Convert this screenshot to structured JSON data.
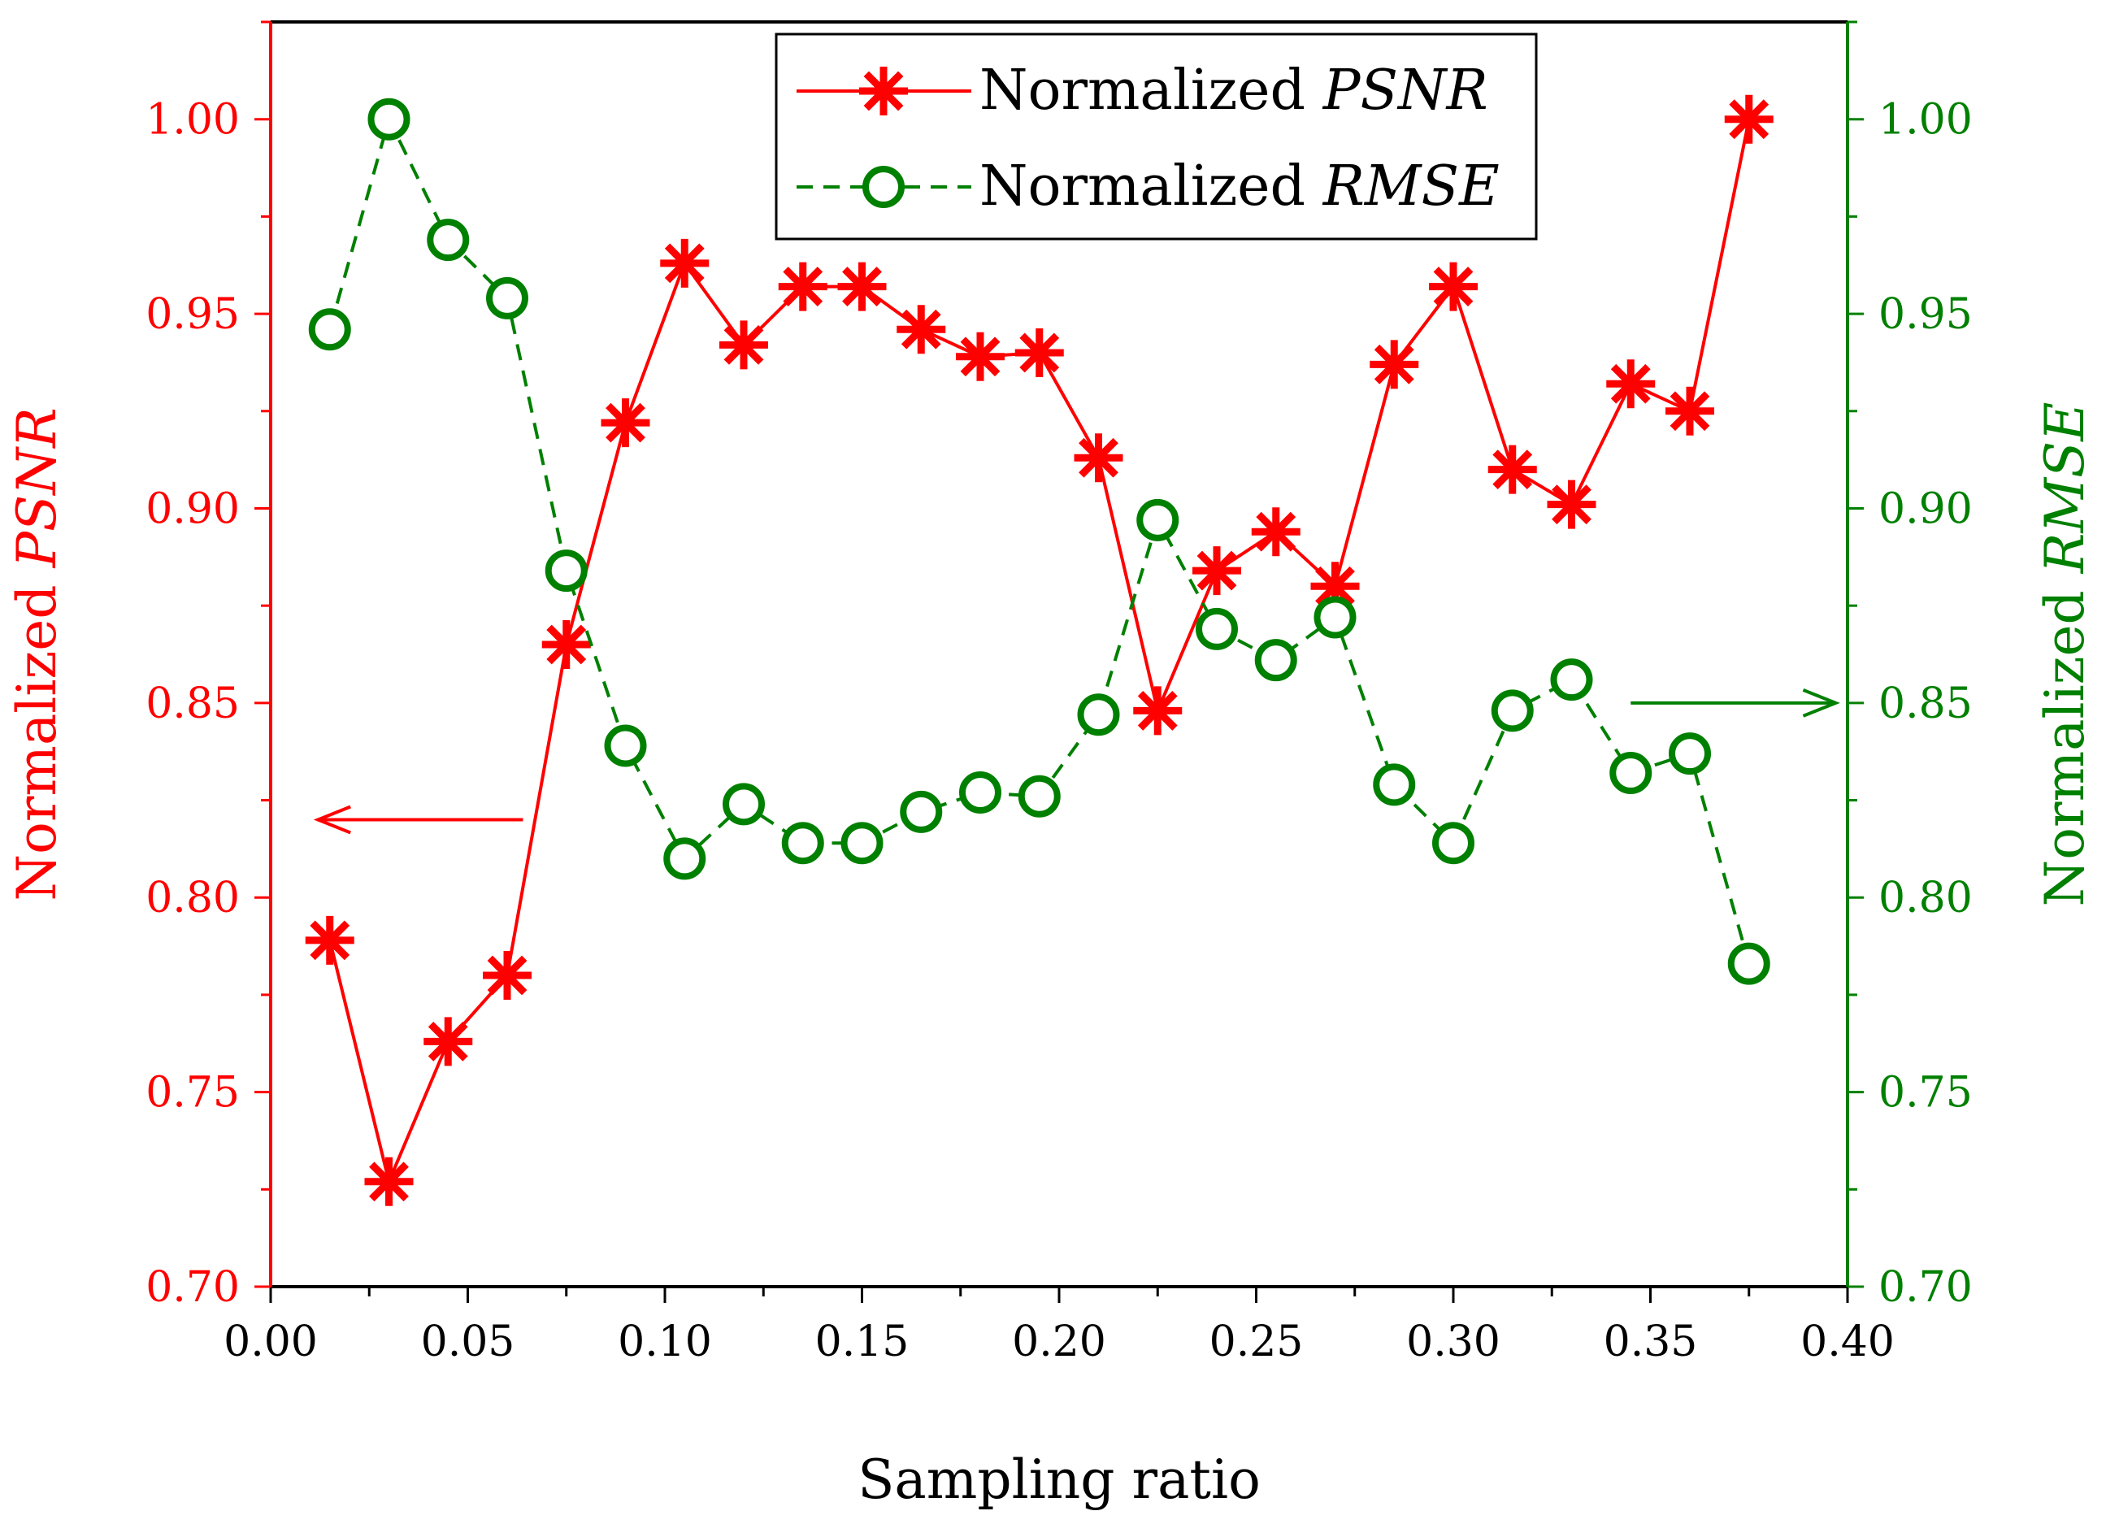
{
  "chart_data": {
    "type": "line",
    "x": [
      0.015,
      0.03,
      0.045,
      0.06,
      0.075,
      0.09,
      0.105,
      0.12,
      0.135,
      0.15,
      0.165,
      0.18,
      0.195,
      0.21,
      0.225,
      0.24,
      0.255,
      0.27,
      0.285,
      0.3,
      0.315,
      0.33,
      0.345,
      0.36,
      0.375
    ],
    "series": [
      {
        "name": "Normalized PSNR",
        "name_prefix": "Normalized ",
        "name_italic": "PSNR",
        "axis": "left",
        "color": "#ff0000",
        "marker": "asterisk",
        "line_style": "solid",
        "values": [
          0.789,
          0.727,
          0.763,
          0.78,
          0.865,
          0.922,
          0.963,
          0.942,
          0.957,
          0.957,
          0.946,
          0.939,
          0.94,
          0.913,
          0.848,
          0.884,
          0.894,
          0.88,
          0.937,
          0.957,
          0.91,
          0.901,
          0.932,
          0.925,
          1.0
        ]
      },
      {
        "name": "Normalized RMSE",
        "name_prefix": "Normalized ",
        "name_italic": "RMSE",
        "axis": "right",
        "color": "#008000",
        "marker": "circle",
        "line_style": "dashed",
        "values": [
          0.946,
          1.0,
          0.969,
          0.954,
          0.884,
          0.839,
          0.81,
          0.824,
          0.814,
          0.814,
          0.822,
          0.827,
          0.826,
          0.847,
          0.897,
          0.869,
          0.861,
          0.872,
          0.829,
          0.814,
          0.848,
          0.856,
          0.832,
          0.837,
          0.783
        ]
      }
    ],
    "xlabel": "Sampling ratio",
    "ylabel_left": {
      "prefix": "Normalized ",
      "italic": "PSNR"
    },
    "ylabel_right": {
      "prefix": "Normalized ",
      "italic": "RMSE"
    },
    "xlim": [
      0.0,
      0.4
    ],
    "ylim_left": [
      0.7,
      1.025
    ],
    "ylim_right": [
      0.7,
      1.025
    ],
    "x_ticks": [
      "0.00",
      "0.05",
      "0.10",
      "0.15",
      "0.20",
      "0.25",
      "0.30",
      "0.35",
      "0.40"
    ],
    "y_ticks_left": [
      "0.70",
      "0.75",
      "0.80",
      "0.85",
      "0.90",
      "0.95",
      "1.00"
    ],
    "y_ticks_right": [
      "0.70",
      "0.75",
      "0.80",
      "0.85",
      "0.90",
      "0.95",
      "1.00"
    ],
    "grid": false,
    "legend_position": "top-center",
    "annotations": [
      {
        "type": "arrow",
        "direction": "left",
        "target_axis": "left",
        "color": "#ff0000",
        "at_x": [
          0.064,
          0.012
        ],
        "at_y": 0.82
      },
      {
        "type": "arrow",
        "direction": "right",
        "target_axis": "right",
        "color": "#008000",
        "at_x": [
          0.345,
          0.397
        ],
        "at_y": 0.85
      }
    ]
  }
}
